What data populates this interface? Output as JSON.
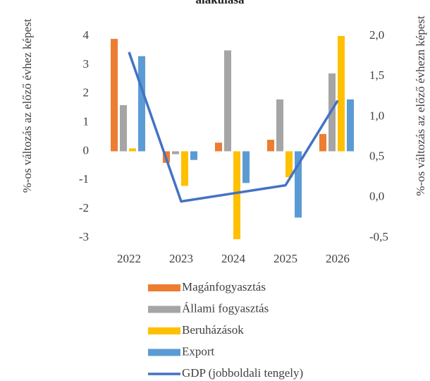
{
  "chart_data": {
    "type": "bar_line",
    "title": "alakulása",
    "y_label": "%-os változás az előző évhez képest",
    "y2_label": "%-os változás az előző évhezn képest",
    "categories": [
      "2022",
      "2023",
      "2024",
      "2025",
      "2026"
    ],
    "series": [
      {
        "name": "Magánfogyasztás",
        "color": "#ed7d31",
        "type": "bar",
        "values": [
          3.9,
          -0.4,
          0.3,
          0.4,
          0.6
        ]
      },
      {
        "name": "Állami fogyasztás",
        "color": "#a5a5a5",
        "type": "bar",
        "values": [
          1.6,
          -0.1,
          3.5,
          1.8,
          2.7
        ]
      },
      {
        "name": "Beruházások",
        "color": "#ffc000",
        "type": "bar",
        "values": [
          0.1,
          -1.2,
          -3.05,
          -0.9,
          4.0
        ]
      },
      {
        "name": "Export",
        "color": "#5b9bd5",
        "type": "bar",
        "values": [
          3.3,
          -0.3,
          -1.1,
          -2.3,
          1.8
        ]
      },
      {
        "name": "GDP (jobboldali tengely)",
        "color": "#4472c4",
        "type": "line",
        "axis": "y2",
        "values": [
          1.8,
          -0.05,
          0.05,
          0.15,
          1.2
        ]
      }
    ],
    "ylim": [
      -3,
      4
    ],
    "yticks": [
      -3,
      -2,
      -1,
      0,
      1,
      2,
      3,
      4
    ],
    "y2lim": [
      -0.5,
      2.0
    ],
    "y2ticks": [
      {
        "value": -0.5,
        "label": "-0,5"
      },
      {
        "value": 0.0,
        "label": "0,0"
      },
      {
        "value": 0.5,
        "label": "0,5"
      },
      {
        "value": 1.0,
        "label": "1,0"
      },
      {
        "value": 1.5,
        "label": "1,5"
      },
      {
        "value": 2.0,
        "label": "2,0"
      }
    ],
    "grid": false,
    "legend": "bottom"
  }
}
